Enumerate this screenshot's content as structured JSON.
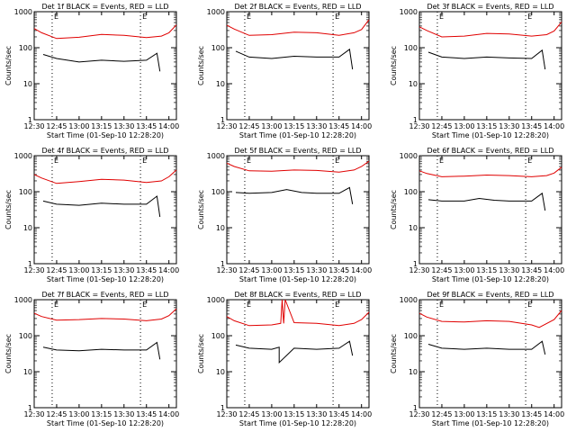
{
  "chart_data": [
    {
      "type": "line",
      "title": "Det 1f BLACK = Events, RED = LLD",
      "xlabel": "Start Time (01-Sep-10 12:28:20)",
      "ylabel": "Counts/sec",
      "y_scale": "log",
      "ylim": [
        1,
        1000
      ],
      "xlim": [
        "12:30",
        "14:05"
      ],
      "x_tick_labels": [
        "12:30",
        "12:45",
        "13:00",
        "13:15",
        "13:30",
        "13:45",
        "14:00"
      ],
      "y_tick_labels": [
        "1",
        "10",
        "100",
        "1000"
      ],
      "marker_labels": [
        "E",
        "E"
      ],
      "vlines": [
        "12:42",
        "13:41"
      ],
      "series": [
        {
          "color": "#e00000",
          "x": [
            "12:30",
            "12:35",
            "12:45",
            "13:00",
            "13:15",
            "13:30",
            "13:45",
            "13:55",
            "14:00",
            "14:05"
          ],
          "y": [
            340,
            260,
            180,
            195,
            235,
            220,
            190,
            210,
            260,
            430
          ]
        },
        {
          "color": "#000000",
          "x": [
            "12:36",
            "12:45",
            "13:00",
            "13:15",
            "13:30",
            "13:45",
            "13:52",
            "13:54"
          ],
          "y": [
            65,
            50,
            40,
            45,
            42,
            45,
            70,
            22
          ]
        }
      ]
    },
    {
      "type": "line",
      "title": "Det 2f BLACK = Events, RED = LLD",
      "xlabel": "Start Time (01-Sep-10 12:28:20)",
      "ylabel": "Counts/sec",
      "y_scale": "log",
      "ylim": [
        1,
        1000
      ],
      "xlim": [
        "12:30",
        "14:05"
      ],
      "x_tick_labels": [
        "12:30",
        "12:45",
        "13:00",
        "13:15",
        "13:30",
        "13:45",
        "14:00"
      ],
      "y_tick_labels": [
        "1",
        "10",
        "100",
        "1000"
      ],
      "marker_labels": [
        "E",
        "E"
      ],
      "vlines": [
        "12:42",
        "13:41"
      ],
      "series": [
        {
          "color": "#e00000",
          "x": [
            "12:30",
            "12:35",
            "12:45",
            "13:00",
            "13:15",
            "13:30",
            "13:45",
            "13:55",
            "14:00",
            "14:05"
          ],
          "y": [
            420,
            330,
            220,
            230,
            270,
            260,
            220,
            260,
            320,
            600
          ]
        },
        {
          "color": "#000000",
          "x": [
            "12:36",
            "12:45",
            "13:00",
            "13:15",
            "13:30",
            "13:45",
            "13:52",
            "13:54"
          ],
          "y": [
            80,
            55,
            50,
            58,
            55,
            55,
            90,
            25
          ]
        }
      ]
    },
    {
      "type": "line",
      "title": "Det 3f BLACK = Events, RED = LLD",
      "xlabel": "Start Time (01-Sep-10 12:28:20)",
      "ylabel": "Counts/sec",
      "y_scale": "log",
      "ylim": [
        1,
        1000
      ],
      "xlim": [
        "12:30",
        "14:05"
      ],
      "x_tick_labels": [
        "12:30",
        "12:45",
        "13:00",
        "13:15",
        "13:30",
        "13:45",
        "14:00"
      ],
      "y_tick_labels": [
        "1",
        "10",
        "100",
        "1000"
      ],
      "marker_labels": [
        "E",
        "E"
      ],
      "vlines": [
        "12:42",
        "13:41"
      ],
      "series": [
        {
          "color": "#e00000",
          "x": [
            "12:30",
            "12:35",
            "12:45",
            "13:00",
            "13:15",
            "13:30",
            "13:45",
            "13:55",
            "14:00",
            "14:05"
          ],
          "y": [
            380,
            300,
            200,
            210,
            250,
            240,
            210,
            230,
            290,
            520
          ]
        },
        {
          "color": "#000000",
          "x": [
            "12:36",
            "12:45",
            "13:00",
            "13:15",
            "13:30",
            "13:45",
            "13:52",
            "13:54"
          ],
          "y": [
            75,
            55,
            50,
            55,
            52,
            50,
            85,
            25
          ]
        }
      ]
    },
    {
      "type": "line",
      "title": "Det 4f BLACK = Events, RED = LLD",
      "xlabel": "Start Time (01-Sep-10 12:28:20)",
      "ylabel": "Counts/sec",
      "y_scale": "log",
      "ylim": [
        1,
        1000
      ],
      "xlim": [
        "12:30",
        "14:05"
      ],
      "x_tick_labels": [
        "12:30",
        "12:45",
        "13:00",
        "13:15",
        "13:30",
        "13:45",
        "14:00"
      ],
      "y_tick_labels": [
        "1",
        "10",
        "100",
        "1000"
      ],
      "marker_labels": [
        "E",
        "E"
      ],
      "vlines": [
        "12:42",
        "13:41"
      ],
      "series": [
        {
          "color": "#e00000",
          "x": [
            "12:30",
            "12:35",
            "12:45",
            "13:00",
            "13:15",
            "13:30",
            "13:45",
            "13:55",
            "14:00",
            "14:05"
          ],
          "y": [
            300,
            240,
            170,
            190,
            220,
            210,
            180,
            200,
            260,
            400
          ]
        },
        {
          "color": "#000000",
          "x": [
            "12:36",
            "12:45",
            "13:00",
            "13:15",
            "13:30",
            "13:45",
            "13:52",
            "13:54"
          ],
          "y": [
            55,
            45,
            42,
            48,
            45,
            45,
            75,
            20
          ]
        }
      ]
    },
    {
      "type": "line",
      "title": "Det 5f BLACK = Events, RED = LLD",
      "xlabel": "Start Time (01-Sep-10 12:28:20)",
      "ylabel": "Counts/sec",
      "y_scale": "log",
      "ylim": [
        1,
        1000
      ],
      "xlim": [
        "12:30",
        "14:05"
      ],
      "x_tick_labels": [
        "12:30",
        "12:45",
        "13:00",
        "13:15",
        "13:30",
        "13:45",
        "14:00"
      ],
      "y_tick_labels": [
        "1",
        "10",
        "100",
        "1000"
      ],
      "marker_labels": [
        "E",
        "E"
      ],
      "vlines": [
        "12:42",
        "13:41"
      ],
      "series": [
        {
          "color": "#e00000",
          "x": [
            "12:30",
            "12:35",
            "12:45",
            "13:00",
            "13:15",
            "13:30",
            "13:45",
            "13:55",
            "14:00",
            "14:05"
          ],
          "y": [
            620,
            500,
            380,
            370,
            400,
            390,
            350,
            400,
            500,
            700
          ]
        },
        {
          "color": "#000000",
          "x": [
            "12:36",
            "12:45",
            "13:00",
            "13:10",
            "13:20",
            "13:30",
            "13:45",
            "13:52",
            "13:54"
          ],
          "y": [
            95,
            90,
            95,
            115,
            95,
            90,
            90,
            130,
            45
          ]
        }
      ]
    },
    {
      "type": "line",
      "title": "Det 6f BLACK = Events, RED = LLD",
      "xlabel": "Start Time (01-Sep-10 12:28:20)",
      "ylabel": "Counts/sec",
      "y_scale": "log",
      "ylim": [
        1,
        1000
      ],
      "xlim": [
        "12:30",
        "14:05"
      ],
      "x_tick_labels": [
        "12:30",
        "12:45",
        "13:00",
        "13:15",
        "13:30",
        "13:45",
        "14:00"
      ],
      "y_tick_labels": [
        "1",
        "10",
        "100",
        "1000"
      ],
      "marker_labels": [
        "E",
        "E"
      ],
      "vlines": [
        "12:42",
        "13:41"
      ],
      "series": [
        {
          "color": "#e00000",
          "x": [
            "12:30",
            "12:35",
            "12:45",
            "13:00",
            "13:15",
            "13:30",
            "13:45",
            "13:55",
            "14:00",
            "14:05"
          ],
          "y": [
            380,
            320,
            260,
            270,
            290,
            280,
            260,
            280,
            330,
            480
          ]
        },
        {
          "color": "#000000",
          "x": [
            "12:36",
            "12:45",
            "13:00",
            "13:10",
            "13:20",
            "13:30",
            "13:45",
            "13:52",
            "13:54"
          ],
          "y": [
            60,
            55,
            55,
            65,
            58,
            55,
            55,
            90,
            30
          ]
        }
      ]
    },
    {
      "type": "line",
      "title": "Det 7f BLACK = Events, RED = LLD",
      "xlabel": "Start Time (01-Sep-10 12:28:20)",
      "ylabel": "Counts/sec",
      "y_scale": "log",
      "ylim": [
        1,
        1000
      ],
      "xlim": [
        "12:30",
        "14:05"
      ],
      "x_tick_labels": [
        "12:30",
        "12:45",
        "13:00",
        "13:15",
        "13:30",
        "13:45",
        "14:00"
      ],
      "y_tick_labels": [
        "1",
        "10",
        "100",
        "1000"
      ],
      "marker_labels": [
        "E",
        "E"
      ],
      "vlines": [
        "12:42",
        "13:41"
      ],
      "series": [
        {
          "color": "#e00000",
          "x": [
            "12:30",
            "12:35",
            "12:45",
            "13:00",
            "13:15",
            "13:30",
            "13:45",
            "13:55",
            "14:00",
            "14:05"
          ],
          "y": [
            420,
            340,
            270,
            280,
            300,
            290,
            260,
            290,
            360,
            560
          ]
        },
        {
          "color": "#000000",
          "x": [
            "12:36",
            "12:45",
            "13:00",
            "13:15",
            "13:30",
            "13:45",
            "13:52",
            "13:54"
          ],
          "y": [
            48,
            40,
            38,
            42,
            40,
            40,
            65,
            22
          ]
        }
      ]
    },
    {
      "type": "line",
      "title": "Det 8f BLACK = Events, RED = LLD",
      "xlabel": "Start Time (01-Sep-10 12:28:20)",
      "ylabel": "Counts/sec",
      "y_scale": "log",
      "ylim": [
        1,
        1000
      ],
      "xlim": [
        "12:30",
        "14:05"
      ],
      "x_tick_labels": [
        "12:30",
        "12:45",
        "13:00",
        "13:15",
        "13:30",
        "13:45",
        "14:00"
      ],
      "y_tick_labels": [
        "1",
        "10",
        "100",
        "1000"
      ],
      "marker_labels": [
        "E",
        "E"
      ],
      "vlines": [
        "12:42",
        "13:41"
      ],
      "series": [
        {
          "color": "#e00000",
          "x": [
            "12:30",
            "12:35",
            "12:45",
            "13:00",
            "13:06",
            "13:07",
            "13:08",
            "13:09",
            "13:15",
            "13:30",
            "13:45",
            "13:55",
            "14:00",
            "14:05"
          ],
          "y": [
            340,
            260,
            190,
            200,
            220,
            1000,
            220,
            1000,
            230,
            220,
            190,
            220,
            280,
            450
          ]
        },
        {
          "color": "#000000",
          "x": [
            "12:36",
            "12:45",
            "13:00",
            "13:05",
            "13:05",
            "13:15",
            "13:30",
            "13:45",
            "13:52",
            "13:54"
          ],
          "y": [
            55,
            45,
            42,
            48,
            18,
            45,
            42,
            45,
            70,
            28
          ]
        }
      ]
    },
    {
      "type": "line",
      "title": "Det 9f BLACK = Events, RED = LLD",
      "xlabel": "Start Time (01-Sep-10 12:28:20)",
      "ylabel": "Counts/sec",
      "y_scale": "log",
      "ylim": [
        1,
        1000
      ],
      "xlim": [
        "12:30",
        "14:05"
      ],
      "x_tick_labels": [
        "12:30",
        "12:45",
        "13:00",
        "13:15",
        "13:30",
        "13:45",
        "14:00"
      ],
      "y_tick_labels": [
        "1",
        "10",
        "100",
        "1000"
      ],
      "marker_labels": [
        "E",
        "E"
      ],
      "vlines": [
        "12:42",
        "13:41"
      ],
      "series": [
        {
          "color": "#e00000",
          "x": [
            "12:30",
            "12:35",
            "12:45",
            "13:00",
            "13:15",
            "13:30",
            "13:45",
            "13:50",
            "14:00",
            "14:05"
          ],
          "y": [
            420,
            330,
            250,
            240,
            260,
            250,
            200,
            170,
            280,
            500
          ]
        },
        {
          "color": "#000000",
          "x": [
            "12:36",
            "12:45",
            "13:00",
            "13:15",
            "13:30",
            "13:45",
            "13:52",
            "13:54"
          ],
          "y": [
            58,
            45,
            42,
            45,
            42,
            42,
            70,
            30
          ]
        }
      ]
    }
  ]
}
